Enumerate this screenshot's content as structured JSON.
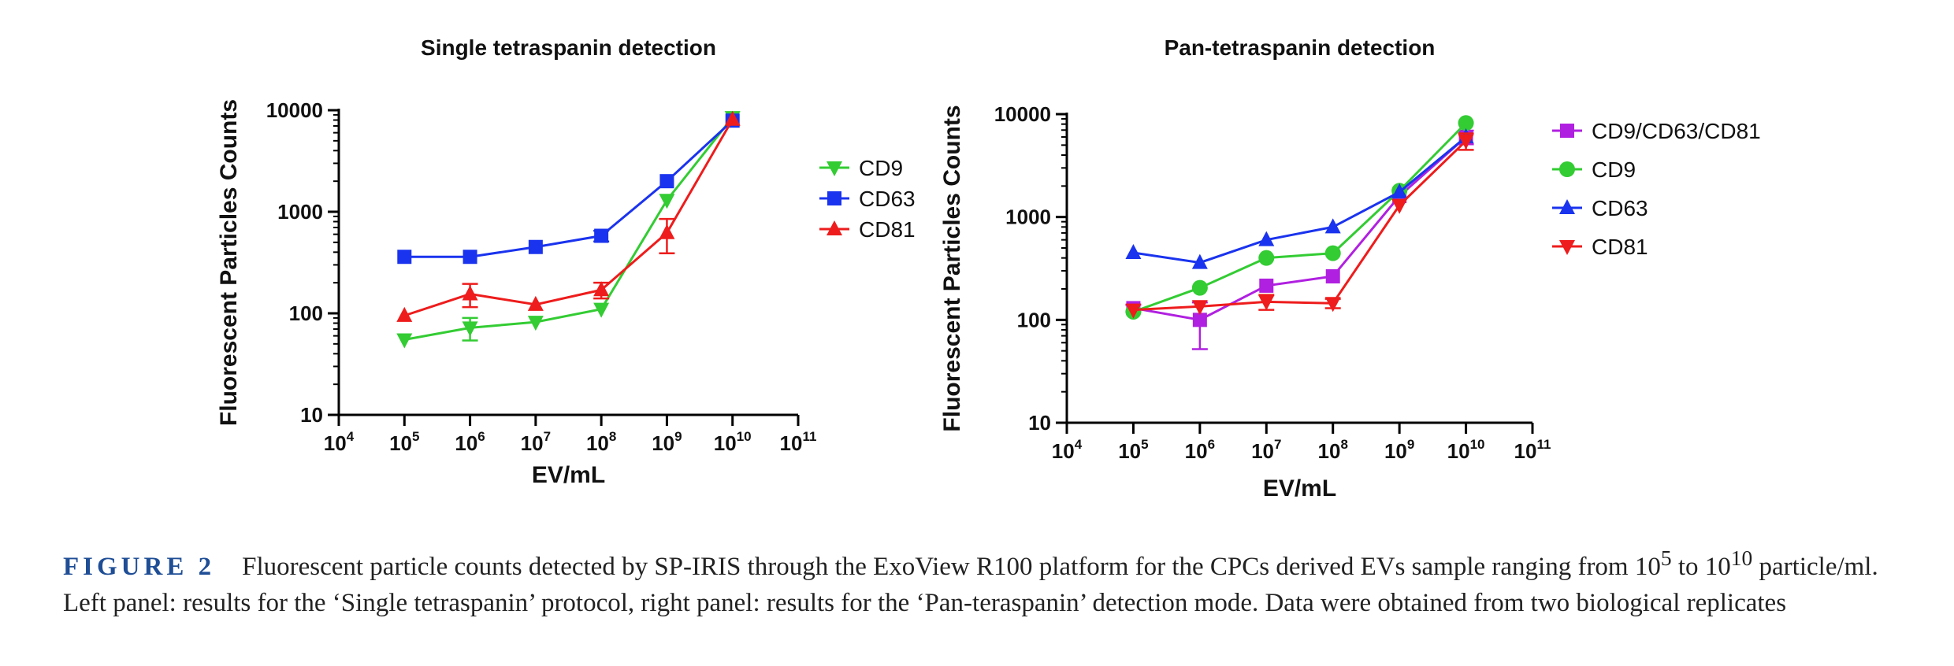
{
  "chart_data": [
    {
      "type": "line",
      "title": "Single tetraspanin detection",
      "xlabel": "EV/mL",
      "ylabel": "Fluorescent Particles Counts",
      "x_scale": "log",
      "y_scale": "log",
      "xlim": [
        10000,
        100000000000
      ],
      "ylim": [
        10,
        10000
      ],
      "x_ticks": [
        {
          "base": "10",
          "exp": "4"
        },
        {
          "base": "10",
          "exp": "5"
        },
        {
          "base": "10",
          "exp": "6"
        },
        {
          "base": "10",
          "exp": "7"
        },
        {
          "base": "10",
          "exp": "8"
        },
        {
          "base": "10",
          "exp": "9"
        },
        {
          "base": "10",
          "exp": "10"
        },
        {
          "base": "10",
          "exp": "11"
        }
      ],
      "y_ticks": [
        "10",
        "100",
        "1000",
        "10000"
      ],
      "legend_position": "right",
      "series": [
        {
          "name": "CD9",
          "color": "#33cc33",
          "marker": "triangle-down",
          "x": [
            100000,
            1000000,
            10000000,
            100000000,
            1000000000,
            10000000000
          ],
          "y": [
            55,
            72,
            82,
            110,
            1300,
            8500
          ],
          "error": [
            0,
            18,
            0,
            0,
            0,
            0
          ]
        },
        {
          "name": "CD63",
          "color": "#1a33ee",
          "marker": "square",
          "x": [
            100000,
            1000000,
            10000000,
            100000000,
            1000000000,
            10000000000
          ],
          "y": [
            360,
            360,
            450,
            580,
            2000,
            7900
          ],
          "error": [
            0,
            0,
            0,
            70,
            0,
            0
          ]
        },
        {
          "name": "CD81",
          "color": "#ee1c1c",
          "marker": "triangle-up",
          "x": [
            100000,
            1000000,
            10000000,
            100000000,
            1000000000,
            10000000000
          ],
          "y": [
            95,
            155,
            122,
            170,
            620,
            8100
          ],
          "error": [
            0,
            40,
            0,
            30,
            230,
            0
          ]
        }
      ]
    },
    {
      "type": "line",
      "title": "Pan-tetraspanin detection",
      "xlabel": "EV/mL",
      "ylabel": "Fluorescent Particles Counts",
      "x_scale": "log",
      "y_scale": "log",
      "xlim": [
        10000,
        100000000000
      ],
      "ylim": [
        10,
        10000
      ],
      "x_ticks": [
        {
          "base": "10",
          "exp": "4"
        },
        {
          "base": "10",
          "exp": "5"
        },
        {
          "base": "10",
          "exp": "6"
        },
        {
          "base": "10",
          "exp": "7"
        },
        {
          "base": "10",
          "exp": "8"
        },
        {
          "base": "10",
          "exp": "9"
        },
        {
          "base": "10",
          "exp": "10"
        },
        {
          "base": "10",
          "exp": "11"
        }
      ],
      "y_ticks": [
        "10",
        "100",
        "1000",
        "10000"
      ],
      "legend_position": "right",
      "series": [
        {
          "name": "CD9/CD63/CD81",
          "color": "#b020e0",
          "marker": "square",
          "x": [
            100000,
            1000000,
            10000000,
            100000000,
            1000000000,
            10000000000
          ],
          "y": [
            130,
            100,
            215,
            265,
            1600,
            6000
          ],
          "error": [
            10,
            48,
            0,
            0,
            0,
            900
          ]
        },
        {
          "name": "CD9",
          "color": "#33cc33",
          "marker": "circle",
          "x": [
            100000,
            1000000,
            10000000,
            100000000,
            1000000000,
            10000000000
          ],
          "y": [
            120,
            205,
            400,
            445,
            1800,
            8200
          ],
          "error": [
            0,
            0,
            0,
            0,
            0,
            0
          ]
        },
        {
          "name": "CD63",
          "color": "#1a33ee",
          "marker": "triangle-up",
          "x": [
            100000,
            1000000,
            10000000,
            100000000,
            1000000000,
            10000000000
          ],
          "y": [
            450,
            360,
            600,
            800,
            1750,
            6000
          ],
          "error": [
            0,
            0,
            0,
            0,
            0,
            0
          ]
        },
        {
          "name": "CD81",
          "color": "#ee1c1c",
          "marker": "triangle-down",
          "x": [
            100000,
            1000000,
            10000000,
            100000000,
            1000000000,
            10000000000
          ],
          "y": [
            125,
            135,
            150,
            145,
            1300,
            5500
          ],
          "error": [
            0,
            0,
            25,
            15,
            0,
            1000
          ]
        }
      ]
    }
  ],
  "caption": {
    "label": "FIGURE 2",
    "text_before": "Fluorescent particle counts detected by SP-IRIS through the ExoView R100 platform for the CPCs derived EVs sample ranging from 10",
    "sup1": "5",
    "text_mid": " to 10",
    "sup2": "10",
    "text_after": " particle/ml. Left panel: results for the ‘Single tetraspanin’ protocol, right panel: results for the ‘Pan-teraspanin’ detection mode. Data were obtained from two biological replicates"
  }
}
